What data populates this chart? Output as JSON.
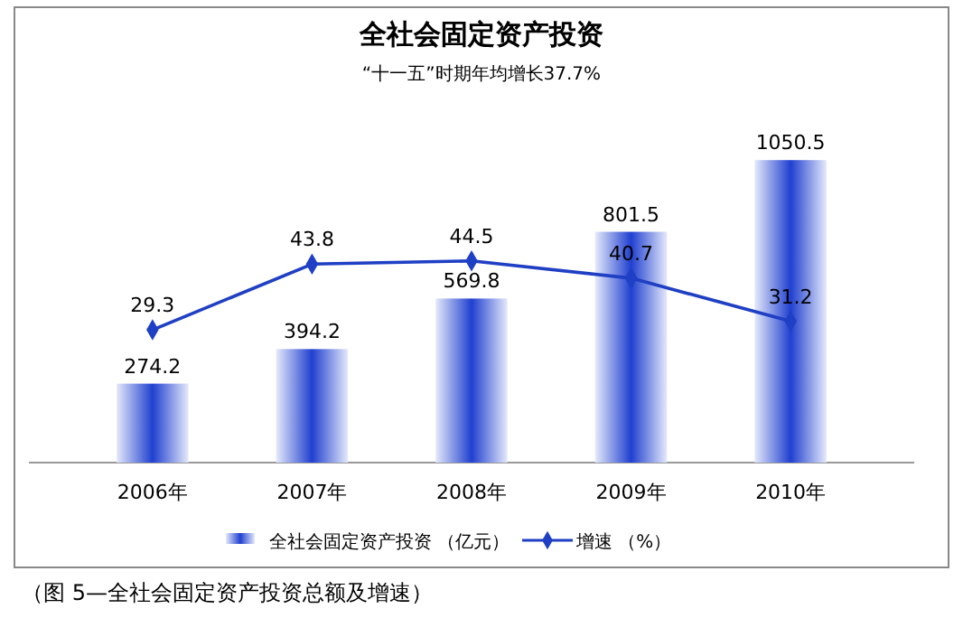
{
  "chart_data": {
    "type": "bar",
    "title": "全社会固定资产投资",
    "subtitle": "“十一五”时期年均增长37.7%",
    "categories": [
      "2006年",
      "2007年",
      "2008年",
      "2009年",
      "2010年"
    ],
    "series": [
      {
        "name": "全社会固定资产投资 （亿元）",
        "color": "#2040d0",
        "values": [
          274.2,
          394.2,
          569.8,
          801.5,
          1050.5
        ]
      },
      {
        "name": "增速 （%）",
        "type": "line",
        "axis": "y2",
        "color": "#1f3fc4",
        "marker": "diamond",
        "values": [
          29.3,
          43.8,
          44.5,
          40.7,
          31.2
        ]
      }
    ],
    "data_labels": true,
    "legend": "bottom",
    "annotations": [
      "（图 5—全社会固定资产投资总额及增速）"
    ]
  }
}
